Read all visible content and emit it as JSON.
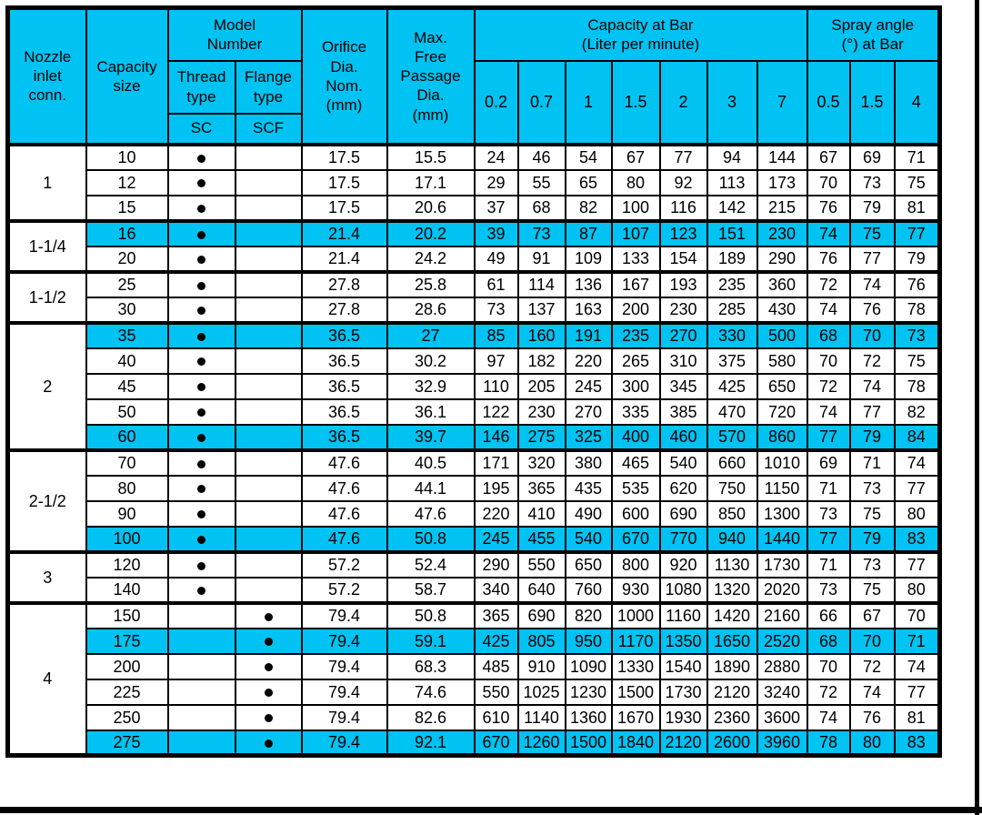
{
  "colors": {
    "header_bg": "#00c3f3",
    "highlight_bg": "#00c3f3",
    "grid": "#000000",
    "page_bg": "#ffffff"
  },
  "dot_glyph": "model-dot",
  "table": {
    "header": {
      "nozzle_inlet": "Nozzle\ninlet\nconn.",
      "capacity_size": "Capacity\nsize",
      "model_number": "Model\nNumber",
      "thread_type": "Thread\ntype",
      "flange_type": "Flange\ntype",
      "thread_code": "SC",
      "flange_code": "SCF",
      "orifice": "Orifice\nDia.\nNom.\n(mm)",
      "max_free_passage": "Max.\nFree\nPassage\nDia.\n(mm)",
      "capacity_group": "Capacity at Bar\n(Liter per minute)",
      "capacity_bars": [
        "0.2",
        "0.7",
        "1",
        "1.5",
        "2",
        "3",
        "7"
      ],
      "spray_group": "Spray angle\n(°) at Bar",
      "spray_bars": [
        "0.5",
        "1.5",
        "4"
      ]
    },
    "groups": [
      {
        "inlet": "1",
        "rows": [
          {
            "size": "10",
            "model": "SC",
            "orifice": "17.5",
            "passage": "15.5",
            "capacity": [
              "24",
              "46",
              "54",
              "67",
              "77",
              "94",
              "144"
            ],
            "spray": [
              "67",
              "69",
              "71"
            ],
            "highlight": false
          },
          {
            "size": "12",
            "model": "SC",
            "orifice": "17.5",
            "passage": "17.1",
            "capacity": [
              "29",
              "55",
              "65",
              "80",
              "92",
              "113",
              "173"
            ],
            "spray": [
              "70",
              "73",
              "75"
            ],
            "highlight": false
          },
          {
            "size": "15",
            "model": "SC",
            "orifice": "17.5",
            "passage": "20.6",
            "capacity": [
              "37",
              "68",
              "82",
              "100",
              "116",
              "142",
              "215"
            ],
            "spray": [
              "76",
              "79",
              "81"
            ],
            "highlight": false
          }
        ]
      },
      {
        "inlet": "1-1/4",
        "rows": [
          {
            "size": "16",
            "model": "SC",
            "orifice": "21.4",
            "passage": "20.2",
            "capacity": [
              "39",
              "73",
              "87",
              "107",
              "123",
              "151",
              "230"
            ],
            "spray": [
              "74",
              "75",
              "77"
            ],
            "highlight": true
          },
          {
            "size": "20",
            "model": "SC",
            "orifice": "21.4",
            "passage": "24.2",
            "capacity": [
              "49",
              "91",
              "109",
              "133",
              "154",
              "189",
              "290"
            ],
            "spray": [
              "76",
              "77",
              "79"
            ],
            "highlight": false
          }
        ]
      },
      {
        "inlet": "1-1/2",
        "rows": [
          {
            "size": "25",
            "model": "SC",
            "orifice": "27.8",
            "passage": "25.8",
            "capacity": [
              "61",
              "114",
              "136",
              "167",
              "193",
              "235",
              "360"
            ],
            "spray": [
              "72",
              "74",
              "76"
            ],
            "highlight": false
          },
          {
            "size": "30",
            "model": "SC",
            "orifice": "27.8",
            "passage": "28.6",
            "capacity": [
              "73",
              "137",
              "163",
              "200",
              "230",
              "285",
              "430"
            ],
            "spray": [
              "74",
              "76",
              "78"
            ],
            "highlight": false
          }
        ]
      },
      {
        "inlet": "2",
        "rows": [
          {
            "size": "35",
            "model": "SC",
            "orifice": "36.5",
            "passage": "27",
            "capacity": [
              "85",
              "160",
              "191",
              "235",
              "270",
              "330",
              "500"
            ],
            "spray": [
              "68",
              "70",
              "73"
            ],
            "highlight": true
          },
          {
            "size": "40",
            "model": "SC",
            "orifice": "36.5",
            "passage": "30.2",
            "capacity": [
              "97",
              "182",
              "220",
              "265",
              "310",
              "375",
              "580"
            ],
            "spray": [
              "70",
              "72",
              "75"
            ],
            "highlight": false
          },
          {
            "size": "45",
            "model": "SC",
            "orifice": "36.5",
            "passage": "32.9",
            "capacity": [
              "110",
              "205",
              "245",
              "300",
              "345",
              "425",
              "650"
            ],
            "spray": [
              "72",
              "74",
              "78"
            ],
            "highlight": false
          },
          {
            "size": "50",
            "model": "SC",
            "orifice": "36.5",
            "passage": "36.1",
            "capacity": [
              "122",
              "230",
              "270",
              "335",
              "385",
              "470",
              "720"
            ],
            "spray": [
              "74",
              "77",
              "82"
            ],
            "highlight": false
          },
          {
            "size": "60",
            "model": "SC",
            "orifice": "36.5",
            "passage": "39.7",
            "capacity": [
              "146",
              "275",
              "325",
              "400",
              "460",
              "570",
              "860"
            ],
            "spray": [
              "77",
              "79",
              "84"
            ],
            "highlight": true
          }
        ]
      },
      {
        "inlet": "2-1/2",
        "rows": [
          {
            "size": "70",
            "model": "SC",
            "orifice": "47.6",
            "passage": "40.5",
            "capacity": [
              "171",
              "320",
              "380",
              "465",
              "540",
              "660",
              "1010"
            ],
            "spray": [
              "69",
              "71",
              "74"
            ],
            "highlight": false
          },
          {
            "size": "80",
            "model": "SC",
            "orifice": "47.6",
            "passage": "44.1",
            "capacity": [
              "195",
              "365",
              "435",
              "535",
              "620",
              "750",
              "1150"
            ],
            "spray": [
              "71",
              "73",
              "77"
            ],
            "highlight": false
          },
          {
            "size": "90",
            "model": "SC",
            "orifice": "47.6",
            "passage": "47.6",
            "capacity": [
              "220",
              "410",
              "490",
              "600",
              "690",
              "850",
              "1300"
            ],
            "spray": [
              "73",
              "75",
              "80"
            ],
            "highlight": false
          },
          {
            "size": "100",
            "model": "SC",
            "orifice": "47.6",
            "passage": "50.8",
            "capacity": [
              "245",
              "455",
              "540",
              "670",
              "770",
              "940",
              "1440"
            ],
            "spray": [
              "77",
              "79",
              "83"
            ],
            "highlight": true
          }
        ]
      },
      {
        "inlet": "3",
        "rows": [
          {
            "size": "120",
            "model": "SC",
            "orifice": "57.2",
            "passage": "52.4",
            "capacity": [
              "290",
              "550",
              "650",
              "800",
              "920",
              "1130",
              "1730"
            ],
            "spray": [
              "71",
              "73",
              "77"
            ],
            "highlight": false
          },
          {
            "size": "140",
            "model": "SC",
            "orifice": "57.2",
            "passage": "58.7",
            "capacity": [
              "340",
              "640",
              "760",
              "930",
              "1080",
              "1320",
              "2020"
            ],
            "spray": [
              "73",
              "75",
              "80"
            ],
            "highlight": false
          }
        ]
      },
      {
        "inlet": "4",
        "rows": [
          {
            "size": "150",
            "model": "SCF",
            "orifice": "79.4",
            "passage": "50.8",
            "capacity": [
              "365",
              "690",
              "820",
              "1000",
              "1160",
              "1420",
              "2160"
            ],
            "spray": [
              "66",
              "67",
              "70"
            ],
            "highlight": false
          },
          {
            "size": "175",
            "model": "SCF",
            "orifice": "79.4",
            "passage": "59.1",
            "capacity": [
              "425",
              "805",
              "950",
              "1170",
              "1350",
              "1650",
              "2520"
            ],
            "spray": [
              "68",
              "70",
              "71"
            ],
            "highlight": true
          },
          {
            "size": "200",
            "model": "SCF",
            "orifice": "79.4",
            "passage": "68.3",
            "capacity": [
              "485",
              "910",
              "1090",
              "1330",
              "1540",
              "1890",
              "2880"
            ],
            "spray": [
              "70",
              "72",
              "74"
            ],
            "highlight": false
          },
          {
            "size": "225",
            "model": "SCF",
            "orifice": "79.4",
            "passage": "74.6",
            "capacity": [
              "550",
              "1025",
              "1230",
              "1500",
              "1730",
              "2120",
              "3240"
            ],
            "spray": [
              "72",
              "74",
              "77"
            ],
            "highlight": false
          },
          {
            "size": "250",
            "model": "SCF",
            "orifice": "79.4",
            "passage": "82.6",
            "capacity": [
              "610",
              "1140",
              "1360",
              "1670",
              "1930",
              "2360",
              "3600"
            ],
            "spray": [
              "74",
              "76",
              "81"
            ],
            "highlight": false
          },
          {
            "size": "275",
            "model": "SCF",
            "orifice": "79.4",
            "passage": "92.1",
            "capacity": [
              "670",
              "1260",
              "1500",
              "1840",
              "2120",
              "2600",
              "3960"
            ],
            "spray": [
              "78",
              "80",
              "83"
            ],
            "highlight": true
          }
        ]
      }
    ]
  }
}
